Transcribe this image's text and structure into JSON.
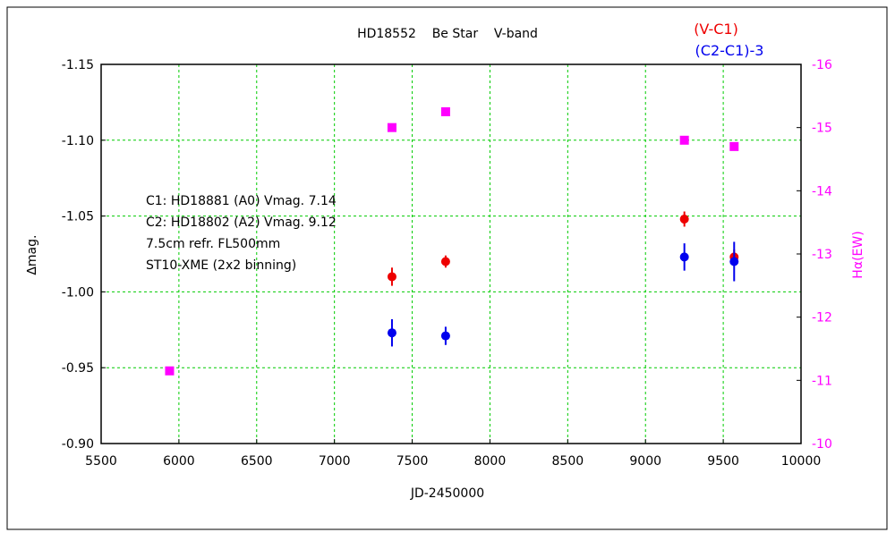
{
  "chart_data": {
    "type": "scatter",
    "title": "HD18552    Be Star    V-band",
    "xlabel": "JD-2450000",
    "ylabel": "∆mag.",
    "y2label": "Hα(EW)",
    "xlim": [
      5500,
      10000
    ],
    "ylim": [
      -1.15,
      -0.9
    ],
    "y_inverted": true,
    "y2lim": [
      -16,
      -10
    ],
    "grid": true,
    "grid_color": "#00cc00",
    "x_ticks": [
      "5500",
      "6000",
      "6500",
      "7000",
      "7500",
      "8000",
      "8500",
      "9000",
      "9500",
      "10000"
    ],
    "y_ticks": [
      "-1.15",
      "-1.10",
      "-1.05",
      "-1.00",
      "-0.95",
      "-0.90"
    ],
    "y2_ticks": [
      "-16",
      "-15",
      "-14",
      "-13",
      "-12",
      "-11",
      "-10"
    ],
    "legend": {
      "placement": "top-right",
      "entries": [
        {
          "label": "(V-C1)",
          "color": "#ee0000"
        },
        {
          "label": "(C2-C1)-3",
          "color": "#0000ee"
        }
      ]
    },
    "annotations": [
      "C1: HD18881 (A0) Vmag. 7.14",
      "C2: HD18802 (A2) Vmag. 9.12",
      "7.5cm refr. FL500mm",
      "ST10-XME (2x2 binning)"
    ],
    "series": [
      {
        "name": "(V-C1)",
        "color": "#ee0000",
        "marker": "circle",
        "axis": "left",
        "points": [
          {
            "x": 7370,
            "y": -1.01,
            "err": 0.006
          },
          {
            "x": 7715,
            "y": -1.02,
            "err": 0.004
          },
          {
            "x": 9250,
            "y": -1.048,
            "err": 0.005
          },
          {
            "x": 9570,
            "y": -1.023,
            "err": 0.005
          }
        ]
      },
      {
        "name": "(C2-C1)-3",
        "color": "#0000ee",
        "marker": "circle",
        "axis": "left",
        "points": [
          {
            "x": 7370,
            "y": -0.973,
            "err": 0.009
          },
          {
            "x": 7715,
            "y": -0.971,
            "err": 0.006
          },
          {
            "x": 9250,
            "y": -1.023,
            "err": 0.009
          },
          {
            "x": 9570,
            "y": -1.02,
            "err": 0.013
          }
        ]
      },
      {
        "name": "Hα(EW)",
        "color": "#ff00ff",
        "marker": "square",
        "axis": "right",
        "points": [
          {
            "x": 5940,
            "y": -11.15
          },
          {
            "x": 7370,
            "y": -15.0
          },
          {
            "x": 7715,
            "y": -15.25
          },
          {
            "x": 9250,
            "y": -14.8
          },
          {
            "x": 9570,
            "y": -14.7
          }
        ]
      }
    ]
  }
}
